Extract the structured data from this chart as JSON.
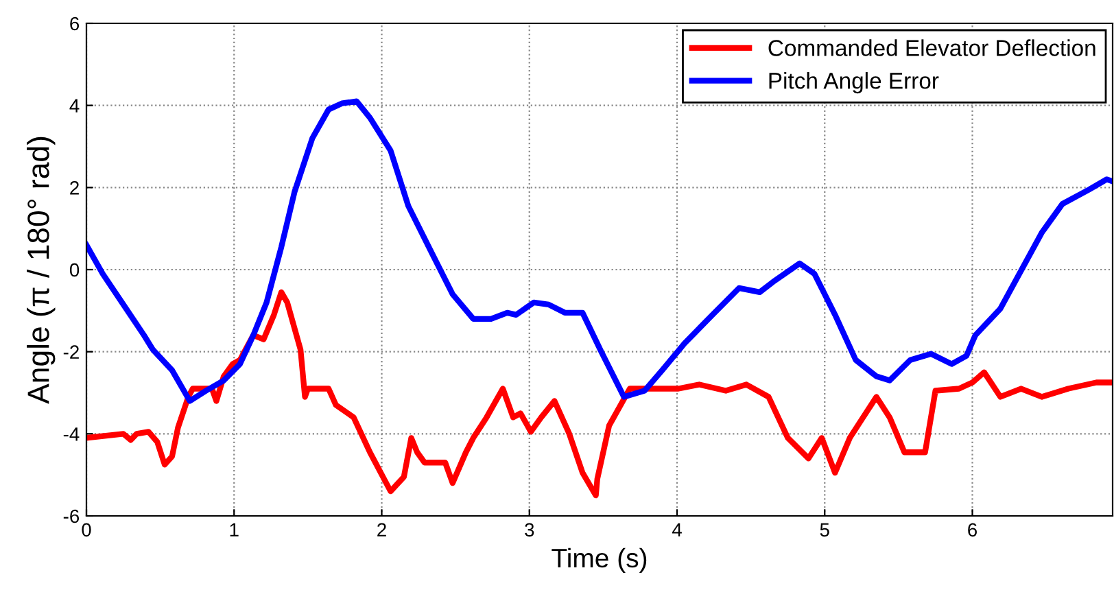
{
  "chart_data": {
    "type": "line",
    "xlabel": "Time (s)",
    "ylabel": "Angle (π / 180° rad)",
    "xlim": [
      0,
      6.95
    ],
    "ylim": [
      -6,
      6
    ],
    "xticks": [
      0,
      1,
      2,
      3,
      4,
      5,
      6
    ],
    "yticks": [
      -6,
      -4,
      -2,
      0,
      2,
      4,
      6
    ],
    "grid": true,
    "legend": "top right",
    "line_style": "solid",
    "marker": "none",
    "series": [
      {
        "name": "Commanded Elevator Deflection",
        "color": "#ff0000",
        "x": [
          0,
          0.25,
          0.3,
          0.34,
          0.42,
          0.48,
          0.53,
          0.58,
          0.62,
          0.69,
          0.72,
          0.85,
          0.88,
          0.93,
          0.99,
          1.04,
          1.13,
          1.2,
          1.27,
          1.32,
          1.36,
          1.45,
          1.48,
          1.5,
          1.64,
          1.69,
          1.81,
          1.92,
          2.06,
          2.15,
          2.2,
          2.24,
          2.29,
          2.43,
          2.48,
          2.57,
          2.62,
          2.71,
          2.82,
          2.89,
          2.94,
          3.01,
          3.08,
          3.17,
          3.27,
          3.36,
          3.45,
          3.46,
          3.54,
          3.68,
          3.82,
          4.01,
          4.15,
          4.33,
          4.47,
          4.62,
          4.75,
          4.89,
          4.98,
          5.07,
          5.17,
          5.35,
          5.44,
          5.54,
          5.68,
          5.75,
          5.91,
          6.0,
          6.08,
          6.19,
          6.33,
          6.47,
          6.65,
          6.84,
          6.95
        ],
        "values": [
          -4.1,
          -4.0,
          -4.15,
          -4.0,
          -3.95,
          -4.2,
          -4.75,
          -4.55,
          -3.85,
          -3.1,
          -2.9,
          -2.9,
          -3.2,
          -2.6,
          -2.3,
          -2.2,
          -1.6,
          -1.7,
          -1.1,
          -0.55,
          -0.8,
          -1.95,
          -3.1,
          -2.9,
          -2.9,
          -3.3,
          -3.6,
          -4.45,
          -5.4,
          -5.05,
          -4.1,
          -4.45,
          -4.7,
          -4.7,
          -5.2,
          -4.45,
          -4.1,
          -3.6,
          -2.9,
          -3.6,
          -3.5,
          -3.95,
          -3.6,
          -3.2,
          -4.0,
          -4.95,
          -5.5,
          -5.1,
          -3.8,
          -2.9,
          -2.9,
          -2.9,
          -2.8,
          -2.95,
          -2.8,
          -3.1,
          -4.1,
          -4.6,
          -4.1,
          -4.95,
          -4.1,
          -3.1,
          -3.6,
          -4.45,
          -4.45,
          -2.95,
          -2.9,
          -2.75,
          -2.5,
          -3.1,
          -2.9,
          -3.1,
          -2.9,
          -2.75,
          -2.75
        ]
      },
      {
        "name": "Pitch Angle Error",
        "color": "#0000ff",
        "x": [
          0,
          0.11,
          0.25,
          0.39,
          0.45,
          0.58,
          0.7,
          0.81,
          0.93,
          1.04,
          1.13,
          1.22,
          1.32,
          1.41,
          1.53,
          1.64,
          1.73,
          1.83,
          1.92,
          2.06,
          2.18,
          2.34,
          2.48,
          2.62,
          2.74,
          2.85,
          2.91,
          3.03,
          3.13,
          3.24,
          3.36,
          3.48,
          3.64,
          3.78,
          3.9,
          4.05,
          4.24,
          4.42,
          4.56,
          4.65,
          4.83,
          4.93,
          5.07,
          5.21,
          5.35,
          5.44,
          5.58,
          5.72,
          5.86,
          5.96,
          6.02,
          6.19,
          6.47,
          6.61,
          6.79,
          6.91,
          6.95
        ],
        "values": [
          0.6,
          -0.1,
          -0.85,
          -1.6,
          -1.95,
          -2.45,
          -3.2,
          -2.95,
          -2.7,
          -2.3,
          -1.6,
          -0.8,
          0.55,
          1.9,
          3.2,
          3.9,
          4.05,
          4.1,
          3.7,
          2.9,
          1.55,
          0.4,
          -0.6,
          -1.2,
          -1.2,
          -1.05,
          -1.1,
          -0.8,
          -0.85,
          -1.05,
          -1.05,
          -1.95,
          -3.1,
          -2.95,
          -2.45,
          -1.8,
          -1.1,
          -0.45,
          -0.55,
          -0.3,
          0.15,
          -0.1,
          -1.1,
          -2.2,
          -2.6,
          -2.7,
          -2.2,
          -2.05,
          -2.3,
          -2.1,
          -1.6,
          -0.95,
          0.9,
          1.6,
          1.95,
          2.2,
          2.15
        ]
      }
    ]
  }
}
